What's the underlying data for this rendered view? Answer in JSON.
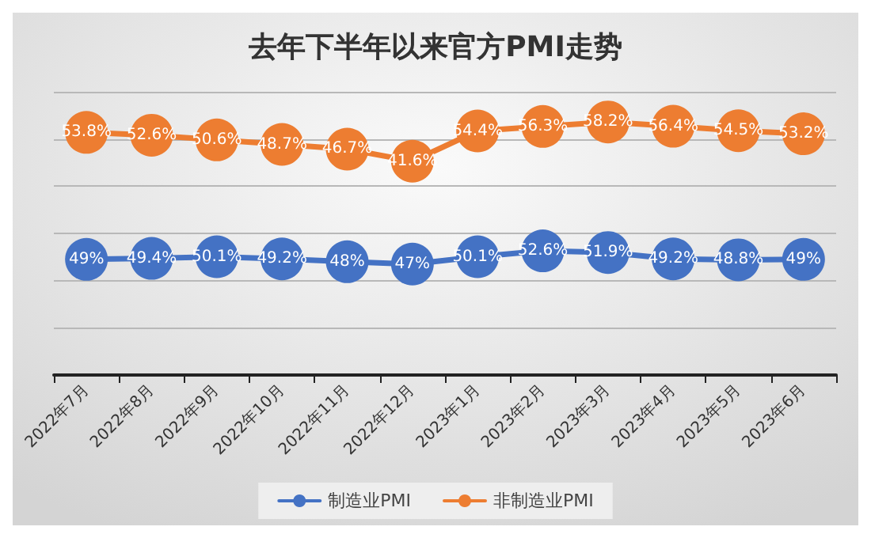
{
  "chart_data": {
    "type": "line",
    "title": "去年下半年以来官方PMI走势",
    "categories": [
      "2022年7月",
      "2022年8月",
      "2022年9月",
      "2022年10月",
      "2022年11月",
      "2022年12月",
      "2023年1月",
      "2023年2月",
      "2023年3月",
      "2023年4月",
      "2023年5月",
      "2023年6月"
    ],
    "series": [
      {
        "name": "制造业PMI",
        "color": "#4472c4",
        "values": [
          49,
          49.4,
          50.1,
          49.2,
          48,
          47,
          50.1,
          52.6,
          51.9,
          49.2,
          48.8,
          49
        ],
        "value_labels": [
          "49%",
          "49.4%",
          "50.1%",
          "49.2%",
          "48%",
          "47%",
          "50.1%",
          "52.6%",
          "51.9%",
          "49.2%",
          "48.8%",
          "49%"
        ]
      },
      {
        "name": "非制造业PMI",
        "color": "#ed7d31",
        "axis": "y2",
        "values": [
          53.8,
          52.6,
          50.6,
          48.7,
          46.7,
          41.6,
          54.4,
          56.3,
          58.2,
          56.4,
          54.5,
          53.2
        ],
        "value_labels": [
          "53.8%",
          "52.6%",
          "50.6%",
          "48.7%",
          "46.7%",
          "41.6%",
          "54.4%",
          "56.3%",
          "58.2%",
          "56.4%",
          "54.5%",
          "53.2%"
        ]
      }
    ],
    "ylim": [
      0,
      120
    ],
    "yticks": [
      {
        "value": 0,
        "label": null
      },
      {
        "value": 20,
        "label": null
      },
      {
        "value": 40,
        "label": null
      },
      {
        "value": 60,
        "label": null
      },
      {
        "value": 80,
        "label": null
      },
      {
        "value": 100,
        "label": null
      },
      {
        "value": 120,
        "label": null
      }
    ],
    "y2lim": [
      -49,
      71
    ],
    "tick_labels": "x",
    "grid": "y",
    "legend": "bottom",
    "marker": "circle",
    "line_style": "solid"
  }
}
